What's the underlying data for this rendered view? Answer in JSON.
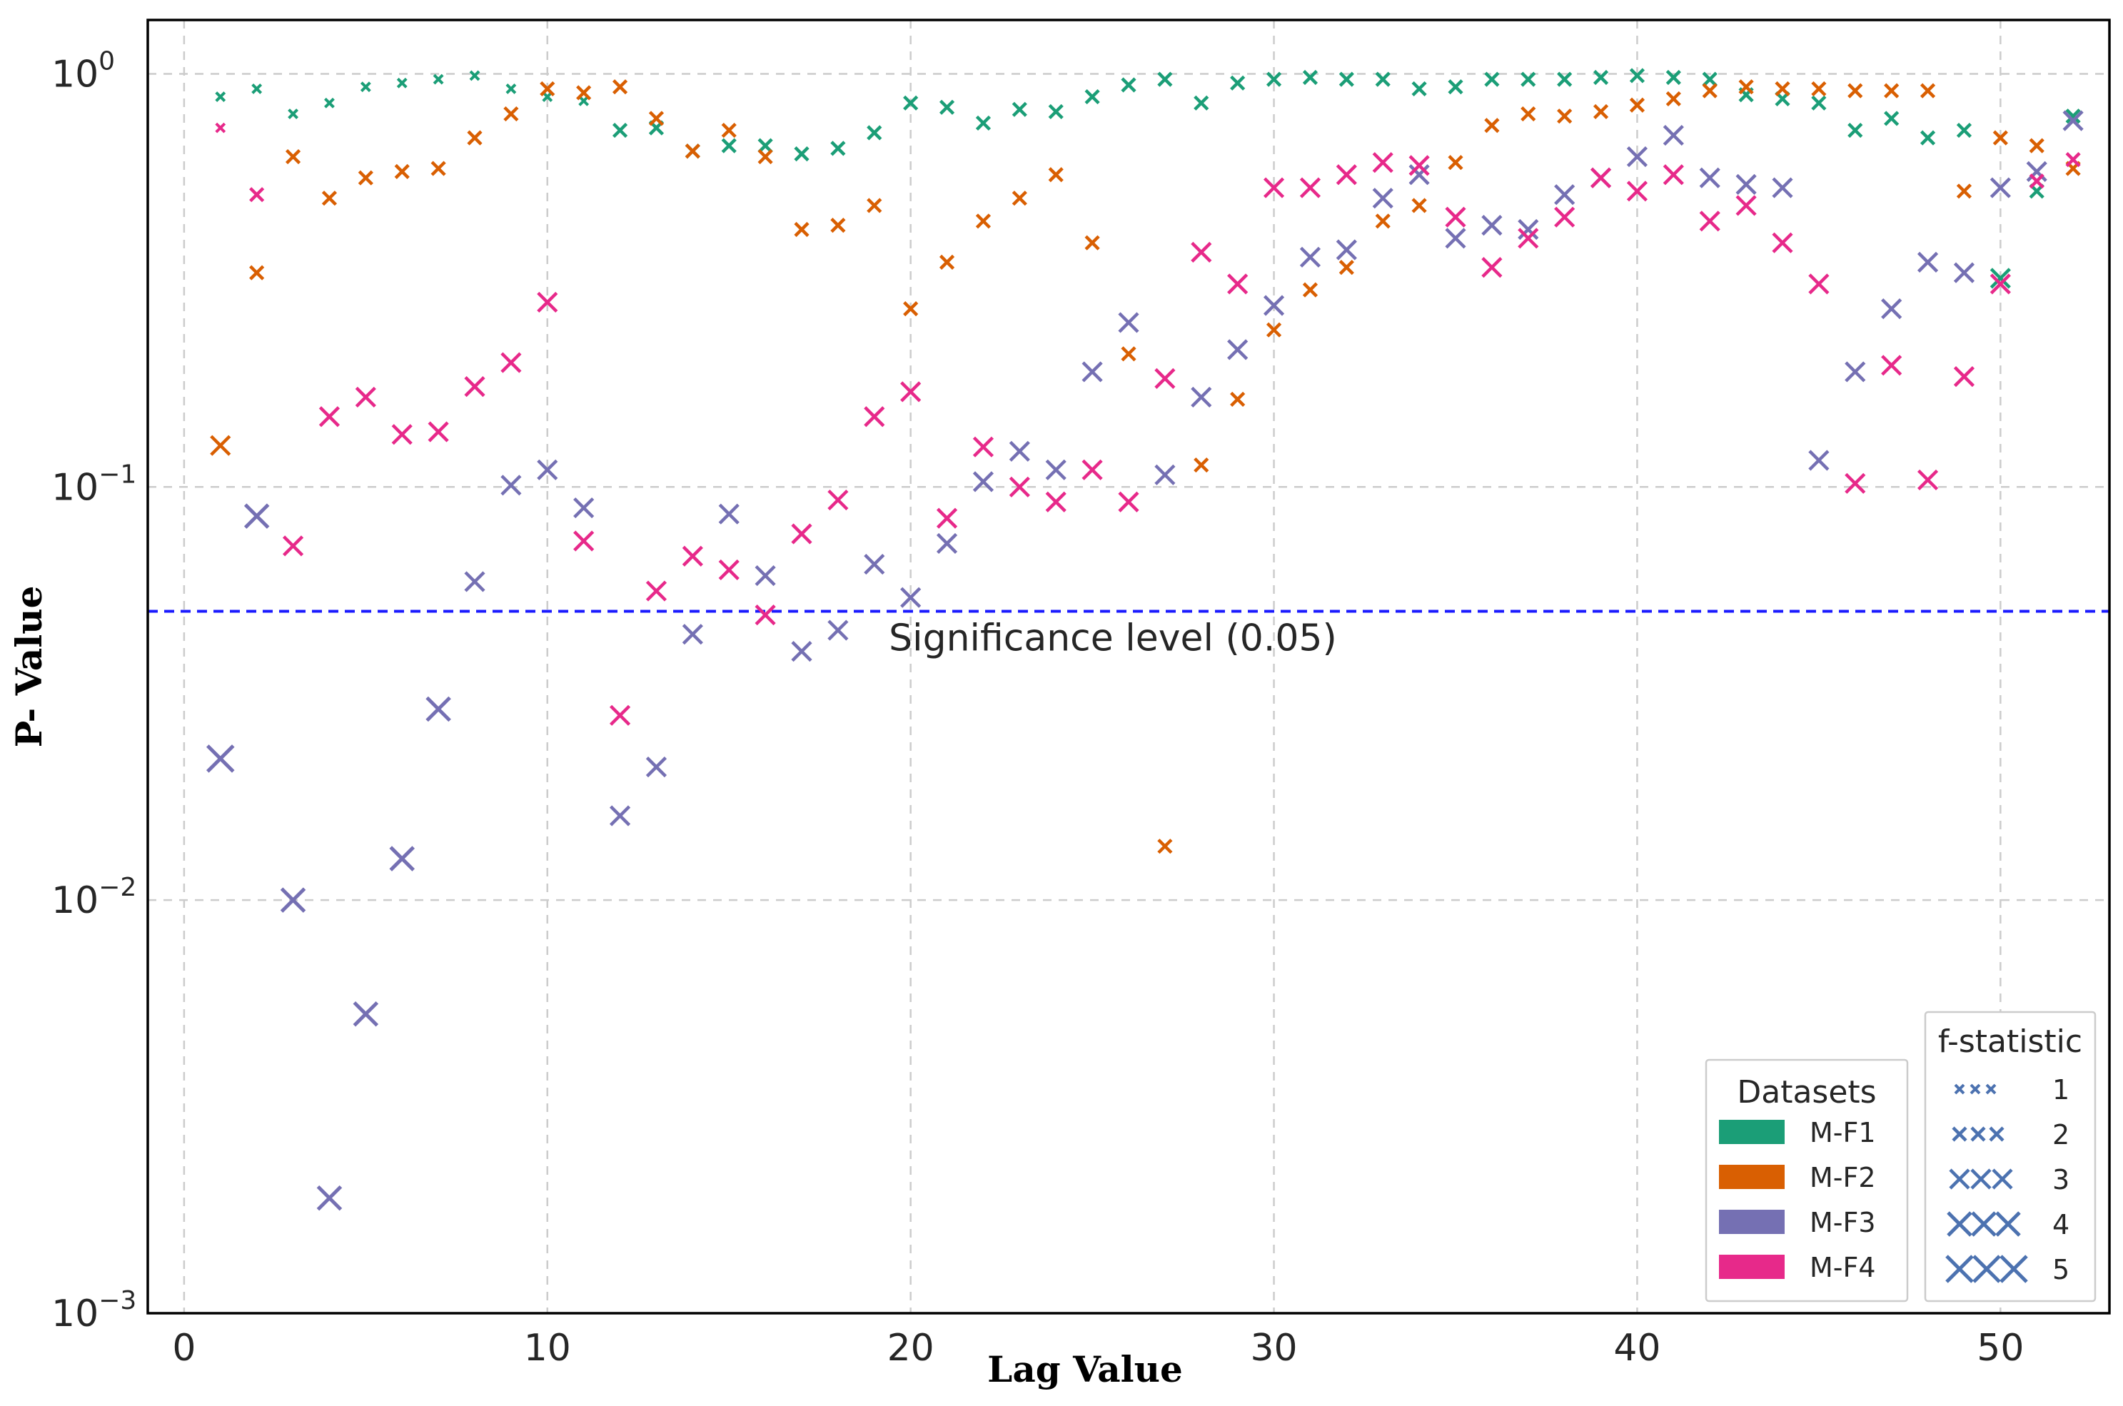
{
  "chart_data": {
    "type": "scatter",
    "title": "",
    "xlabel": "Lag Value",
    "ylabel": "P- Value",
    "xlim": [
      -1,
      53
    ],
    "ylim": [
      0.001,
      1.35
    ],
    "yscale": "log",
    "grid": true,
    "x_ticks": [
      0,
      10,
      20,
      30,
      40,
      50
    ],
    "x_tick_labels": [
      "0",
      "10",
      "20",
      "30",
      "40",
      "50"
    ],
    "y_ticks": [
      0.001,
      0.01,
      0.1,
      1
    ],
    "y_tick_labels": [
      {
        "base": "10",
        "exp": "−3"
      },
      {
        "base": "10",
        "exp": "−2"
      },
      {
        "base": "10",
        "exp": "−1"
      },
      {
        "base": "10",
        "exp": "0"
      }
    ],
    "threshold": {
      "value": 0.05,
      "label": "Significance level (0.05)",
      "color": "#1a1aff"
    },
    "datasets_legend": {
      "title": "Datasets",
      "placement": "bottom-right",
      "entries": [
        {
          "name": "M-F1",
          "color": "#1b9e77"
        },
        {
          "name": "M-F2",
          "color": "#d95f02"
        },
        {
          "name": "M-F3",
          "color": "#7570b3"
        },
        {
          "name": "M-F4",
          "color": "#e7298a"
        }
      ]
    },
    "size_legend": {
      "title": "f-statistic",
      "placement": "bottom-right",
      "color": "#4c72b0",
      "entries": [
        "1",
        "2",
        "3",
        "4",
        "5"
      ]
    },
    "series": [
      {
        "name": "M-F1",
        "color": "#1b9e77",
        "x": [
          1,
          2,
          3,
          4,
          5,
          6,
          7,
          8,
          9,
          10,
          11,
          12,
          13,
          14,
          15,
          16,
          17,
          18,
          19,
          20,
          21,
          22,
          23,
          24,
          25,
          26,
          27,
          28,
          29,
          30,
          31,
          32,
          33,
          34,
          35,
          36,
          37,
          38,
          39,
          40,
          41,
          42,
          43,
          44,
          45,
          46,
          47,
          48,
          49,
          50,
          51,
          52
        ],
        "y": [
          0.88,
          0.92,
          0.8,
          0.85,
          0.93,
          0.95,
          0.97,
          0.99,
          0.92,
          0.88,
          0.86,
          0.73,
          0.74,
          0.65,
          0.67,
          0.67,
          0.64,
          0.66,
          0.72,
          0.85,
          0.83,
          0.76,
          0.82,
          0.81,
          0.88,
          0.94,
          0.97,
          0.85,
          0.95,
          0.97,
          0.98,
          0.97,
          0.97,
          0.92,
          0.93,
          0.97,
          0.97,
          0.97,
          0.98,
          0.99,
          0.98,
          0.97,
          0.89,
          0.87,
          0.85,
          0.73,
          0.78,
          0.7,
          0.73,
          0.32,
          0.52,
          0.79
        ],
        "size": [
          1,
          1,
          1,
          1,
          1,
          1,
          1,
          1,
          1,
          1,
          1,
          2,
          2,
          2,
          2,
          2,
          2,
          2,
          2,
          2,
          2,
          2,
          2,
          2,
          2,
          2,
          2,
          2,
          2,
          2,
          2,
          2,
          2,
          2,
          2,
          2,
          2,
          2,
          2,
          2,
          2,
          2,
          2,
          2,
          2,
          2,
          2,
          2,
          2,
          3,
          2,
          2
        ]
      },
      {
        "name": "M-F2",
        "color": "#d95f02",
        "x": [
          1,
          2,
          3,
          4,
          5,
          6,
          7,
          8,
          9,
          10,
          11,
          12,
          13,
          14,
          15,
          16,
          17,
          18,
          19,
          20,
          21,
          22,
          23,
          24,
          25,
          26,
          27,
          28,
          29,
          30,
          31,
          32,
          33,
          34,
          35,
          36,
          37,
          38,
          39,
          40,
          41,
          42,
          43,
          44,
          45,
          46,
          47,
          48,
          49,
          50,
          51,
          52
        ],
        "y": [
          0.126,
          0.33,
          0.63,
          0.5,
          0.56,
          0.58,
          0.59,
          0.7,
          0.8,
          0.92,
          0.9,
          0.93,
          0.78,
          0.65,
          0.73,
          0.63,
          0.42,
          0.43,
          0.48,
          0.27,
          0.35,
          0.44,
          0.5,
          0.57,
          0.39,
          0.21,
          0.0135,
          0.113,
          0.163,
          0.24,
          0.3,
          0.34,
          0.44,
          0.48,
          0.61,
          0.75,
          0.8,
          0.79,
          0.81,
          0.84,
          0.87,
          0.91,
          0.93,
          0.92,
          0.92,
          0.91,
          0.91,
          0.91,
          0.52,
          0.7,
          0.67,
          0.59
        ],
        "size": [
          3,
          2,
          2,
          2,
          2,
          2,
          2,
          2,
          2,
          2,
          2,
          2,
          2,
          2,
          2,
          2,
          2,
          2,
          2,
          2,
          2,
          2,
          2,
          2,
          2,
          2,
          2,
          2,
          2,
          2,
          2,
          2,
          2,
          2,
          2,
          2,
          2,
          2,
          2,
          2,
          2,
          2,
          2,
          2,
          2,
          2,
          2,
          2,
          2,
          2,
          2,
          2
        ]
      },
      {
        "name": "M-F3",
        "color": "#7570b3",
        "x": [
          1,
          2,
          3,
          4,
          5,
          6,
          7,
          8,
          9,
          10,
          11,
          12,
          13,
          14,
          15,
          16,
          17,
          18,
          19,
          20,
          21,
          22,
          23,
          24,
          25,
          26,
          27,
          28,
          29,
          30,
          31,
          32,
          33,
          34,
          35,
          36,
          37,
          38,
          39,
          40,
          41,
          42,
          43,
          44,
          45,
          46,
          47,
          48,
          49,
          50,
          51,
          52
        ],
        "y": [
          0.022,
          0.085,
          0.01,
          0.0019,
          0.0053,
          0.0126,
          0.029,
          0.059,
          0.101,
          0.11,
          0.089,
          0.016,
          0.021,
          0.044,
          0.086,
          0.061,
          0.04,
          0.045,
          0.065,
          0.054,
          0.073,
          0.103,
          0.122,
          0.11,
          0.19,
          0.25,
          0.107,
          0.165,
          0.215,
          0.275,
          0.36,
          0.375,
          0.5,
          0.57,
          0.4,
          0.43,
          0.42,
          0.51,
          0.56,
          0.63,
          0.71,
          0.56,
          0.54,
          0.53,
          0.116,
          0.19,
          0.27,
          0.35,
          0.33,
          0.53,
          0.58,
          0.77
        ],
        "size": [
          5,
          4,
          4,
          4,
          4,
          4,
          4,
          3,
          3,
          3,
          3,
          3,
          3,
          3,
          3,
          3,
          3,
          3,
          3,
          3,
          3,
          3,
          3,
          3,
          3,
          3,
          3,
          3,
          3,
          3,
          3,
          3,
          3,
          3,
          3,
          3,
          3,
          3,
          3,
          3,
          3,
          3,
          3,
          3,
          3,
          3,
          3,
          3,
          3,
          3,
          3,
          3
        ]
      },
      {
        "name": "M-F4",
        "color": "#e7298a",
        "x": [
          1,
          2,
          3,
          4,
          5,
          6,
          7,
          8,
          9,
          10,
          11,
          12,
          13,
          14,
          15,
          16,
          17,
          18,
          19,
          20,
          21,
          22,
          23,
          24,
          25,
          26,
          27,
          28,
          29,
          30,
          31,
          32,
          33,
          34,
          35,
          36,
          37,
          38,
          39,
          40,
          41,
          42,
          43,
          44,
          45,
          46,
          47,
          48,
          49,
          50,
          51,
          52
        ],
        "y": [
          0.74,
          0.51,
          0.072,
          0.148,
          0.165,
          0.134,
          0.136,
          0.175,
          0.2,
          0.28,
          0.074,
          0.028,
          0.056,
          0.068,
          0.063,
          0.049,
          0.077,
          0.093,
          0.148,
          0.17,
          0.084,
          0.125,
          0.1,
          0.092,
          0.11,
          0.092,
          0.183,
          0.37,
          0.31,
          0.53,
          0.53,
          0.57,
          0.61,
          0.6,
          0.45,
          0.34,
          0.4,
          0.45,
          0.56,
          0.52,
          0.57,
          0.44,
          0.48,
          0.39,
          0.31,
          0.102,
          0.197,
          0.104,
          0.185,
          0.31,
          0.55,
          0.62
        ],
        "size": [
          1,
          2,
          3,
          3,
          3,
          3,
          3,
          3,
          3,
          3,
          3,
          3,
          3,
          3,
          3,
          3,
          3,
          3,
          3,
          3,
          3,
          3,
          3,
          3,
          3,
          3,
          3,
          3,
          3,
          3,
          3,
          3,
          3,
          3,
          3,
          3,
          3,
          3,
          3,
          3,
          3,
          3,
          3,
          3,
          3,
          3,
          3,
          3,
          3,
          3,
          2,
          2
        ]
      }
    ]
  }
}
